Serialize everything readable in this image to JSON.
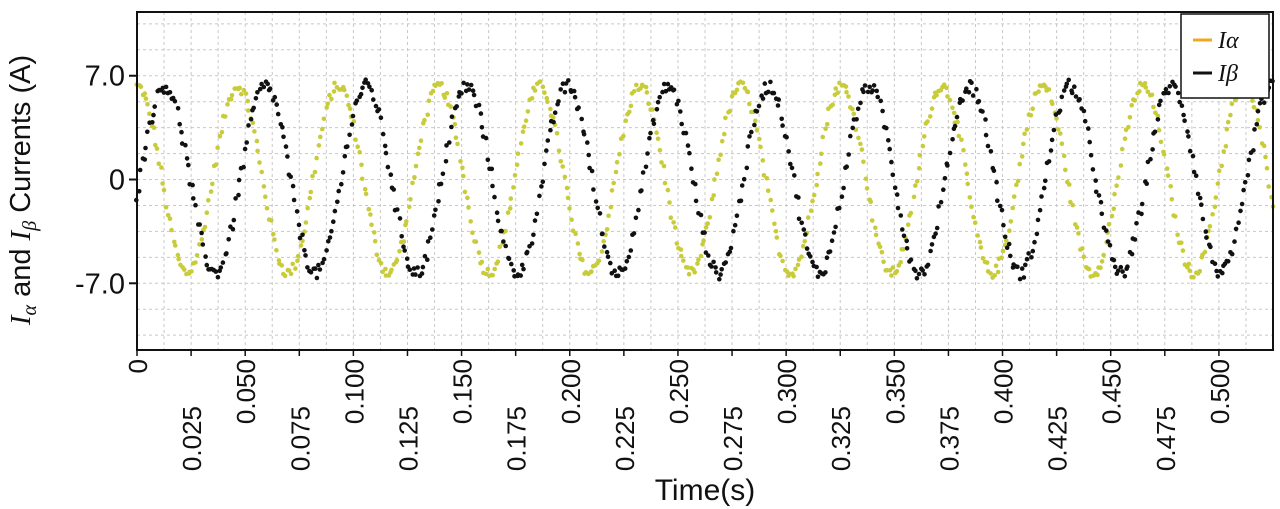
{
  "chart_data": {
    "type": "scatter",
    "xlabel": "Time(s)",
    "ylabel_parts": {
      "i_alpha": "I",
      "alpha_sub": "α",
      "and": " and ",
      "i_beta": "I",
      "beta_sub": "β",
      "rest": " Currents (A)"
    },
    "xlim": [
      0,
      0.525
    ],
    "ylim": [
      -11.5,
      11.3
    ],
    "x_ticks": [
      0,
      0.025,
      0.05,
      0.075,
      0.1,
      0.125,
      0.15,
      0.175,
      0.2,
      0.225,
      0.25,
      0.275,
      0.3,
      0.325,
      0.35,
      0.375,
      0.4,
      0.425,
      0.45,
      0.475,
      0.5
    ],
    "x_tick_labels": [
      "0",
      "0.025",
      "0.050",
      "0.075",
      "0.100",
      "0.125",
      "0.150",
      "0.175",
      "0.200",
      "0.225",
      "0.250",
      "0.275",
      "0.300",
      "0.325",
      "0.350",
      "0.375",
      "0.400",
      "0.425",
      "0.450",
      "0.475",
      "0.500"
    ],
    "y_ticks": [
      7.0,
      0,
      -7.0
    ],
    "y_tick_labels": [
      "7.0",
      "0",
      "-7.0"
    ],
    "grid": true,
    "legend_position": "top-right",
    "series": [
      {
        "name": "Iα",
        "color": "#c9cc3a",
        "legend_color": "#f0a820",
        "amplitude": 6.3,
        "period": 0.0465,
        "phase_deg": 90,
        "noise": 0.35
      },
      {
        "name": "Iβ",
        "color": "#111111",
        "legend_color": "#111111",
        "amplitude": 6.3,
        "period": 0.0465,
        "phase_deg": -10,
        "noise": 0.45
      }
    ],
    "point_count": 620
  }
}
